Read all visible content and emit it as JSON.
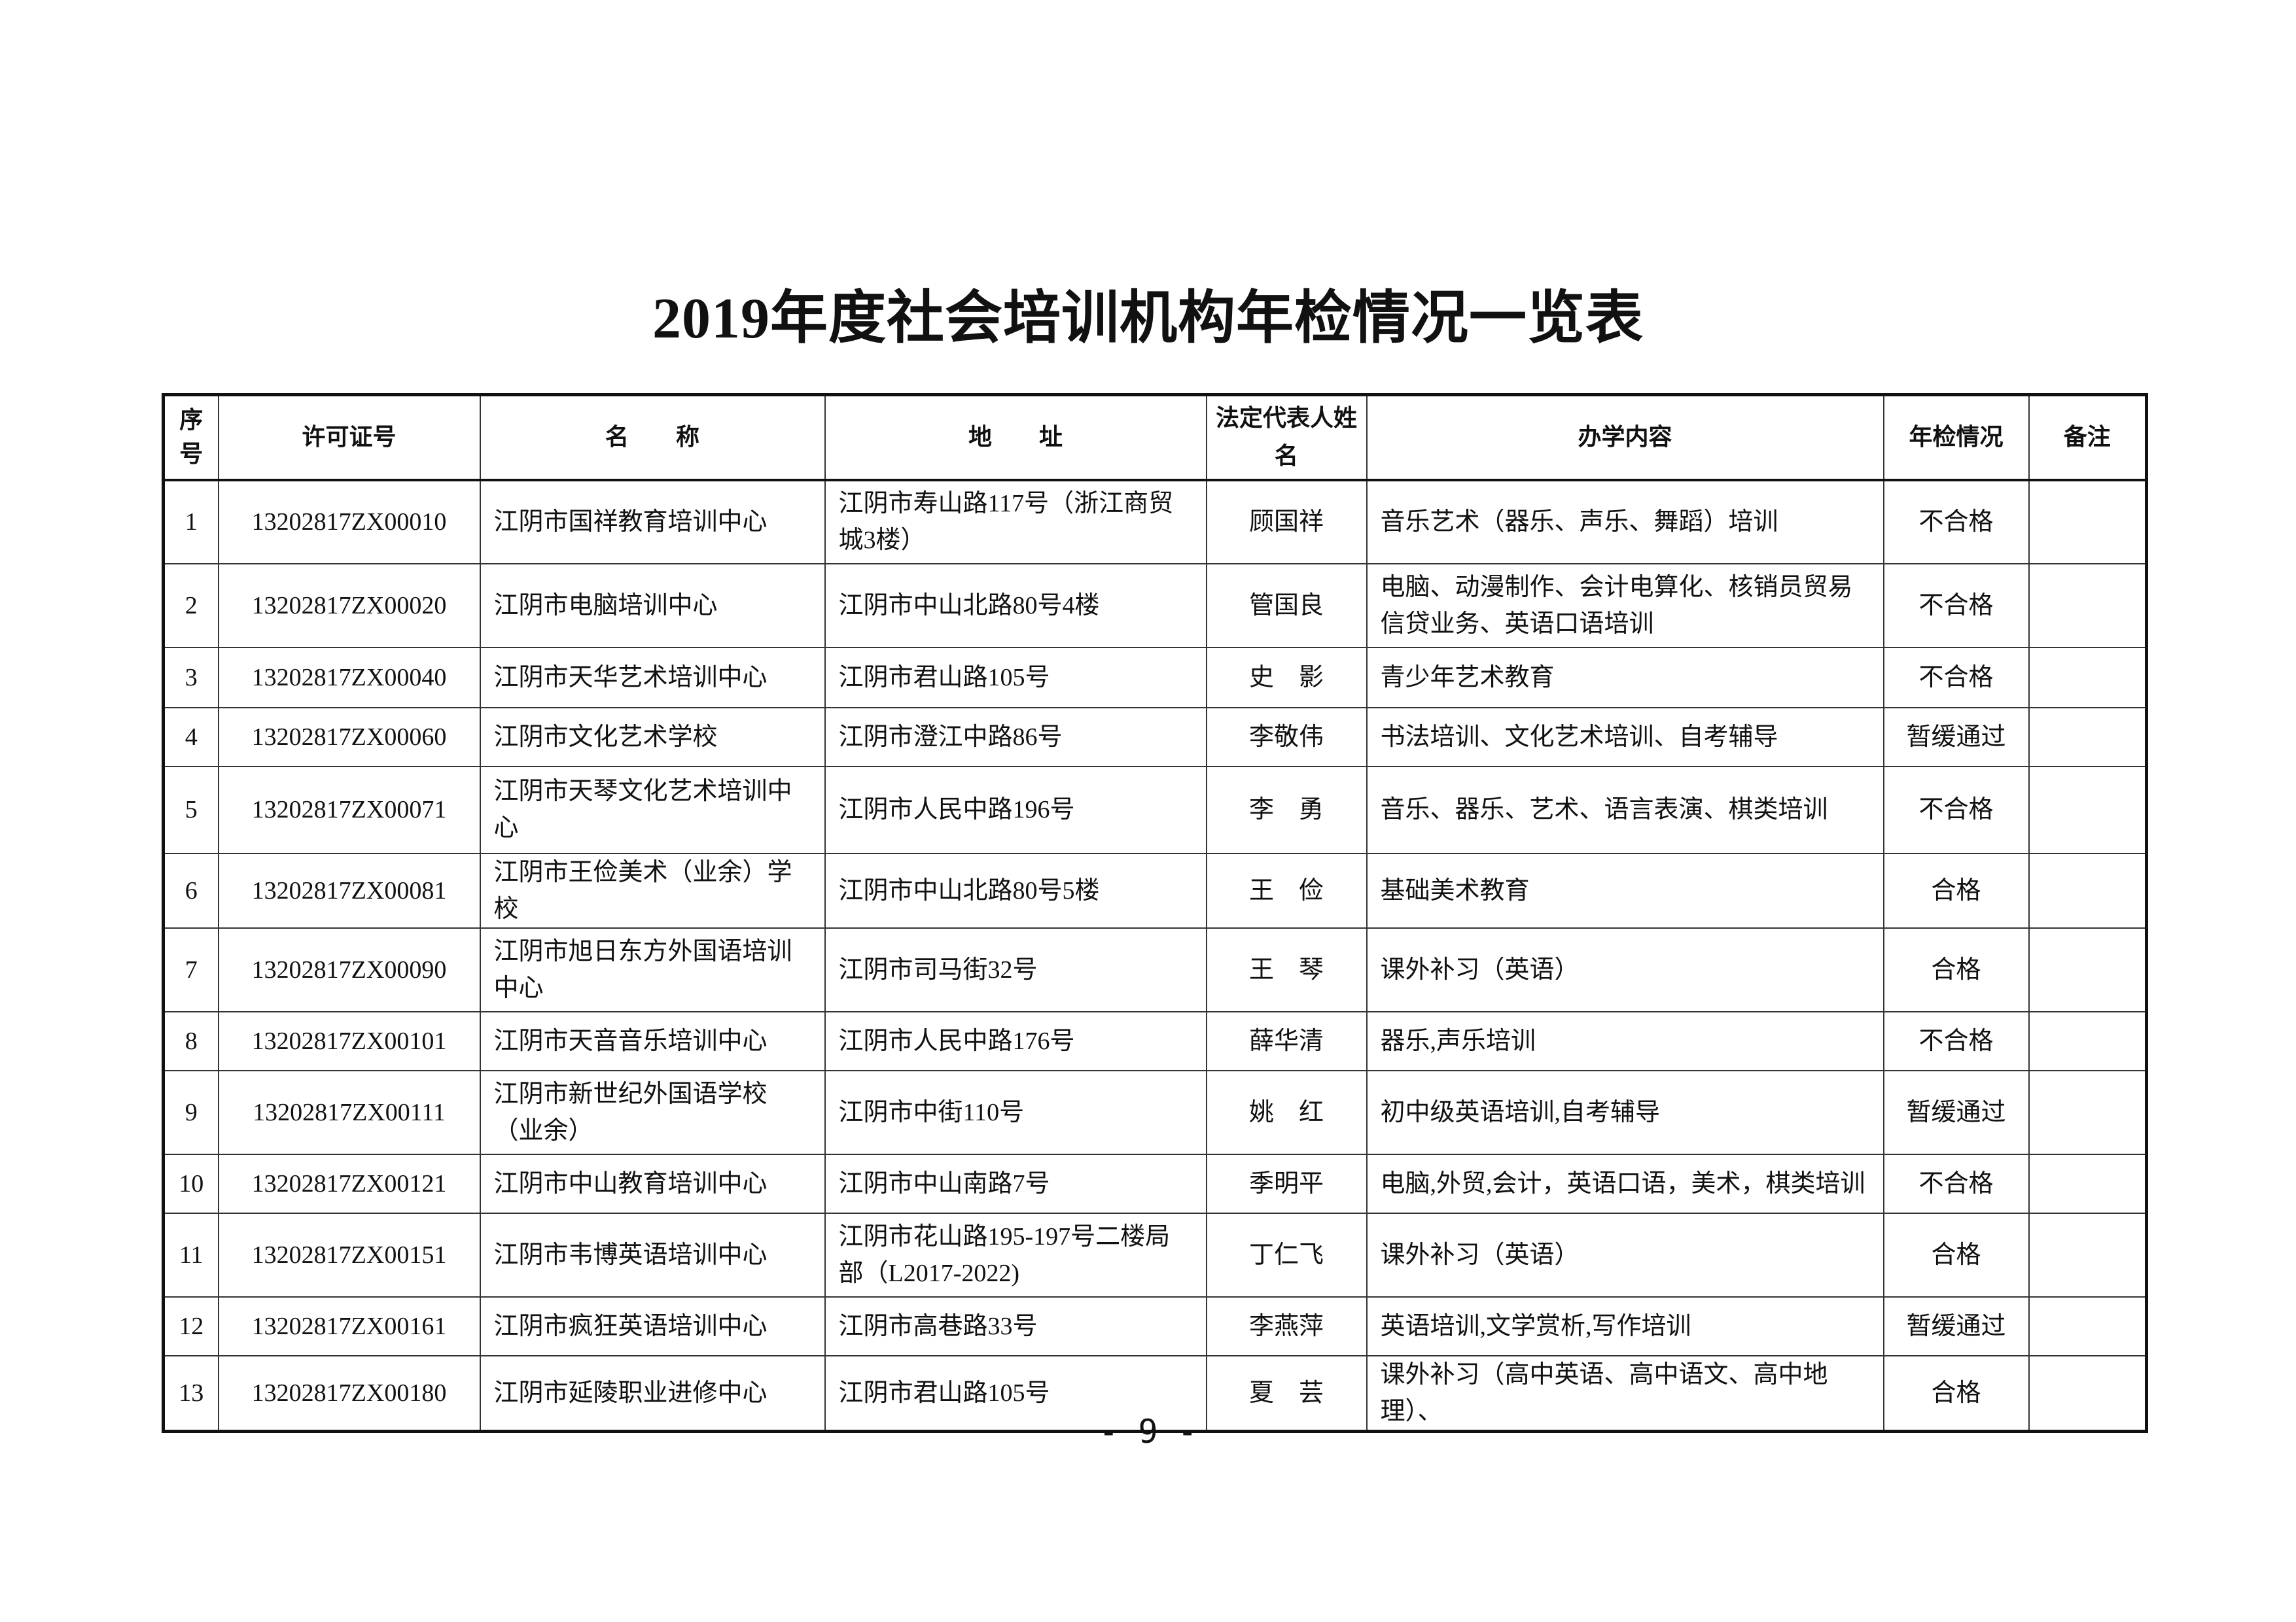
{
  "title": "2019年度社会培训机构年检情况一览表",
  "headers": {
    "seq": "序号",
    "license": "许可证号",
    "name": "名　　称",
    "address": "地　　址",
    "rep": "法定代表人姓　名",
    "content": "办学内容",
    "status": "年检情况",
    "remark": "备注"
  },
  "rows": [
    {
      "seq": "1",
      "license": "13202817ZX00010",
      "name": "江阴市国祥教育培训中心",
      "address": "江阴市寿山路117号（浙江商贸城3楼）",
      "rep": "顾国祥",
      "content": "音乐艺术（器乐、声乐、舞蹈）培训",
      "status": "不合格",
      "remark": ""
    },
    {
      "seq": "2",
      "license": "13202817ZX00020",
      "name": "江阴市电脑培训中心",
      "address": "江阴市中山北路80号4楼",
      "rep": "管国良",
      "content": "电脑、动漫制作、会计电算化、核销员贸易信贷业务、英语口语培训",
      "status": "不合格",
      "remark": ""
    },
    {
      "seq": "3",
      "license": "13202817ZX00040",
      "name": "江阴市天华艺术培训中心",
      "address": "江阴市君山路105号",
      "rep": "史　影",
      "content": "青少年艺术教育",
      "status": "不合格",
      "remark": ""
    },
    {
      "seq": "4",
      "license": "13202817ZX00060",
      "name": "江阴市文化艺术学校",
      "address": "江阴市澄江中路86号",
      "rep": "李敬伟",
      "content": "书法培训、文化艺术培训、自考辅导",
      "status": "暂缓通过",
      "remark": ""
    },
    {
      "seq": "5",
      "license": "13202817ZX00071",
      "name": "江阴市天琴文化艺术培训中心",
      "address": "江阴市人民中路196号",
      "rep": "李　勇",
      "content": "音乐、器乐、艺术、语言表演、棋类培训",
      "status": "不合格",
      "remark": ""
    },
    {
      "seq": "6",
      "license": "13202817ZX00081",
      "name": "江阴市王俭美术（业余）学校",
      "address": "江阴市中山北路80号5楼",
      "rep": "王　俭",
      "content": "基础美术教育",
      "status": "合格",
      "remark": ""
    },
    {
      "seq": "7",
      "license": "13202817ZX00090",
      "name": "江阴市旭日东方外国语培训中心",
      "address": "江阴市司马街32号",
      "rep": "王　琴",
      "content": "课外补习（英语）",
      "status": "合格",
      "remark": ""
    },
    {
      "seq": "8",
      "license": "13202817ZX00101",
      "name": "江阴市天音音乐培训中心",
      "address": "江阴市人民中路176号",
      "rep": "薛华清",
      "content": "器乐,声乐培训",
      "status": "不合格",
      "remark": ""
    },
    {
      "seq": "9",
      "license": "13202817ZX00111",
      "name": "江阴市新世纪外国语学校（业余）",
      "address": "江阴市中街110号",
      "rep": "姚　红",
      "content": "初中级英语培训,自考辅导",
      "status": "暂缓通过",
      "remark": ""
    },
    {
      "seq": "10",
      "license": "13202817ZX00121",
      "name": "江阴市中山教育培训中心",
      "address": "江阴市中山南路7号",
      "rep": "季明平",
      "content": "电脑,外贸,会计，英语口语，美术，棋类培训",
      "status": "不合格",
      "remark": ""
    },
    {
      "seq": "11",
      "license": "13202817ZX00151",
      "name": "江阴市韦博英语培训中心",
      "address": "江阴市花山路195-197号二楼局部（L2017-2022)",
      "rep": "丁仁飞",
      "content": "课外补习（英语）",
      "status": "合格",
      "remark": ""
    },
    {
      "seq": "12",
      "license": "13202817ZX00161",
      "name": "江阴市疯狂英语培训中心",
      "address": "江阴市高巷路33号",
      "rep": "李燕萍",
      "content": "英语培训,文学赏析,写作培训",
      "status": "暂缓通过",
      "remark": ""
    },
    {
      "seq": "13",
      "license": "13202817ZX00180",
      "name": "江阴市延陵职业进修中心",
      "address": "江阴市君山路105号",
      "rep": "夏　芸",
      "content": "课外补习（高中英语、高中语文、高中地理）、",
      "status": "合格",
      "remark": ""
    }
  ],
  "page_number": "- 9 -"
}
